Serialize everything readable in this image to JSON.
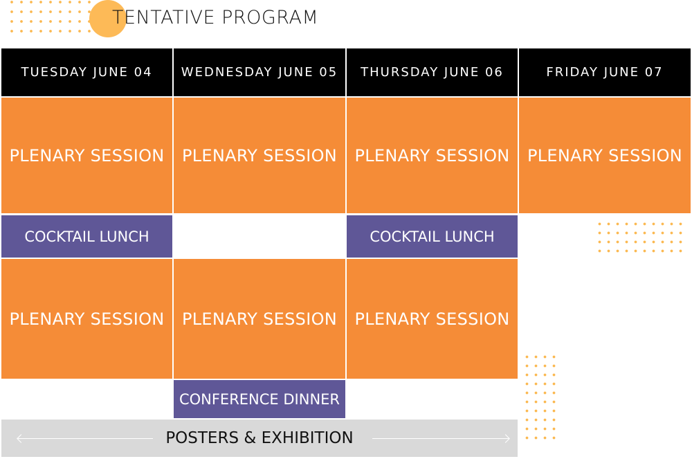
{
  "title": "TENTATIVE PROGRAM",
  "days": [
    "TUESDAY JUNE 04",
    "WEDNESDAY JUNE 05",
    "THURSDAY JUNE 06",
    "FRIDAY JUNE 07"
  ],
  "sessions": {
    "plenary": "PLENARY SESSION",
    "cocktail_lunch": "COCKTAIL LUNCH",
    "conference_dinner": "CONFERENCE DINNER",
    "posters": "POSTERS & EXHIBITION"
  },
  "colors": {
    "header": "#000000",
    "plenary": "#f58c37",
    "social": "#5f5797",
    "posters": "#d9d9d9",
    "accent": "#fdba57"
  }
}
